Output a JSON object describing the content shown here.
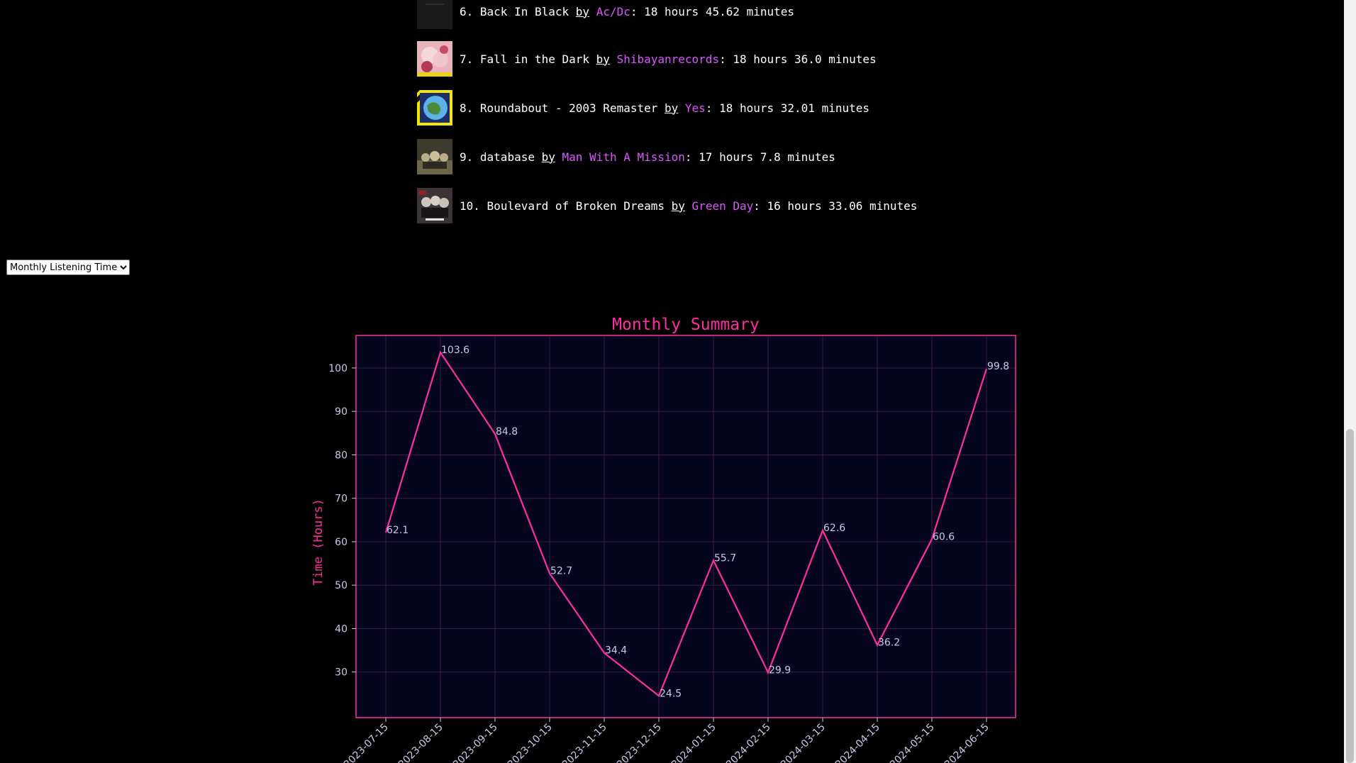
{
  "tracks": [
    {
      "rank": "6.",
      "title": "Back In Black",
      "by": "by",
      "artist": "Ac/Dc",
      "time": ": 18 hours 45.62 minutes",
      "cover_icon": "album-cover-back-in-black"
    },
    {
      "rank": "7.",
      "title": "Fall in the Dark",
      "by": "by",
      "artist": "Shibayanrecords",
      "time": ": 18 hours 36.0 minutes",
      "cover_icon": "album-cover-fall-in-the-dark"
    },
    {
      "rank": "8.",
      "title": "Roundabout - 2003 Remaster",
      "by": "by",
      "artist": "Yes",
      "time": ": 18 hours 32.01 minutes",
      "cover_icon": "album-cover-roundabout"
    },
    {
      "rank": "9.",
      "title": "database",
      "by": "by",
      "artist": "Man With A Mission",
      "time": ": 17 hours 7.8 minutes",
      "cover_icon": "album-cover-database"
    },
    {
      "rank": "10.",
      "title": "Boulevard of Broken Dreams",
      "by": "by",
      "artist": "Green Day",
      "time": ": 16 hours 33.06 minutes",
      "cover_icon": "album-cover-boulevard"
    }
  ],
  "selector": {
    "selected": "Monthly Listening Time"
  },
  "colors": {
    "accent": "#ff2fa0",
    "artist": "#d957ff",
    "plot_bg": "#05051e",
    "grid": "#3a1a4a",
    "label": "#c8c8e8"
  },
  "chart_data": {
    "type": "line",
    "title": "Monthly Summary",
    "xlabel": "",
    "ylabel": "Time (Hours)",
    "x": [
      "2023-07-15",
      "2023-08-15",
      "2023-09-15",
      "2023-10-15",
      "2023-11-15",
      "2023-12-15",
      "2024-01-15",
      "2024-02-15",
      "2024-03-15",
      "2024-04-15",
      "2024-05-15",
      "2024-06-15"
    ],
    "values": [
      62.1,
      103.6,
      84.8,
      52.7,
      34.4,
      24.5,
      55.7,
      29.9,
      62.6,
      36.2,
      60.6,
      99.8
    ],
    "data_labels": [
      "62.1",
      "103.6",
      "84.8",
      "52.7",
      "34.4",
      "24.5",
      "55.7",
      "29.9",
      "62.6",
      "36.2",
      "60.6",
      "99.8"
    ],
    "ylim": [
      19.5,
      107.5
    ],
    "yticks": [
      30,
      40,
      50,
      60,
      70,
      80,
      90,
      100
    ],
    "grid": true
  }
}
